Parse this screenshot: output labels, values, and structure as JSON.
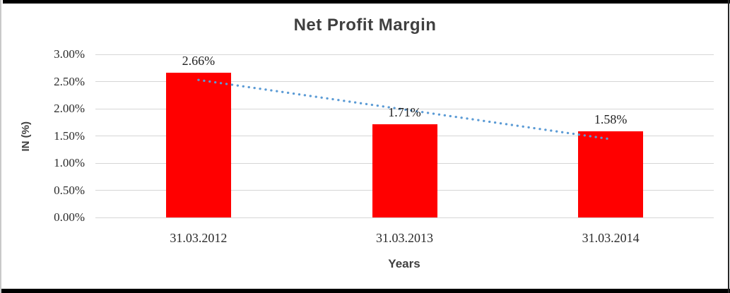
{
  "frame": {
    "background": "#ffffff",
    "border_color": "#000000"
  },
  "chart_data": {
    "type": "bar",
    "title": "Net Profit Margin",
    "xlabel": "Years",
    "ylabel": "IN (%)",
    "categories": [
      "31.03.2012",
      "31.03.2013",
      "31.03.2014"
    ],
    "series": [
      {
        "name": "Net Profit Margin",
        "values": [
          2.66,
          1.71,
          1.58
        ],
        "color": "#ff0000"
      }
    ],
    "data_labels": [
      "2.66%",
      "1.71%",
      "1.58%"
    ],
    "ylim": [
      0,
      3
    ],
    "y_tick_labels": [
      "0.00%",
      "0.50%",
      "1.00%",
      "1.50%",
      "2.00%",
      "2.50%",
      "3.00%"
    ],
    "grid": true,
    "gridline_color": "#d6d6d6",
    "legend": "none",
    "trendline": {
      "type": "linear",
      "style": "dotted",
      "color": "#5b9bd5",
      "endpoint_values": [
        2.53,
        1.44
      ]
    }
  },
  "colors": {
    "title_text": "#3f3f3f",
    "label_text": "#2b2b2b",
    "bar_fill": "#ff0000",
    "trendline": "#5b9bd5",
    "gridline": "#d6d6d6"
  }
}
